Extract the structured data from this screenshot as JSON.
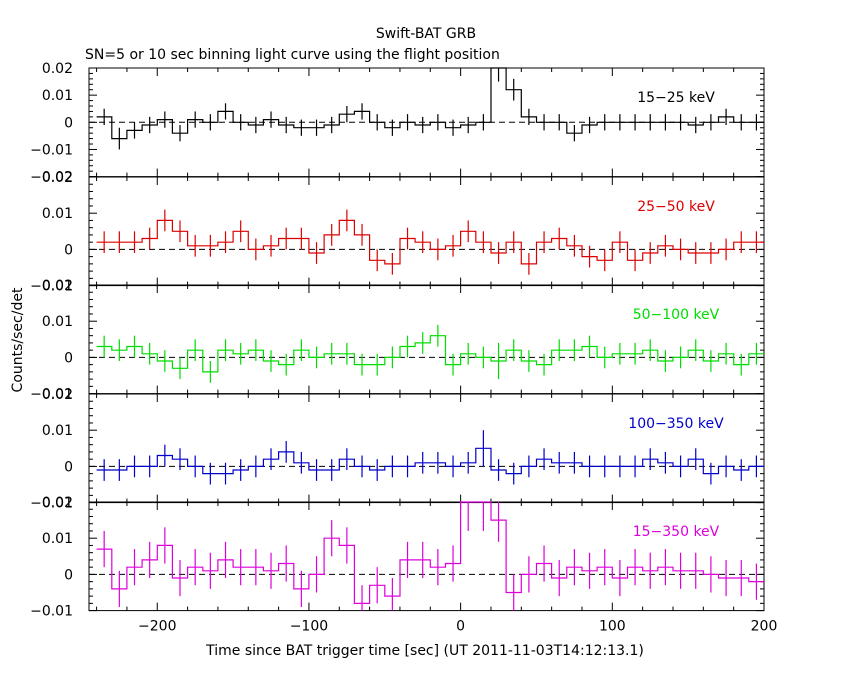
{
  "title": "Swift-BAT GRB",
  "subtitle": "SN=5 or 10 sec binning light curve using the flight position",
  "ylabel": "Counts/sec/det",
  "xlabel": "Time since BAT trigger time [sec] (UT 2011-11-03T14:12:13.1)",
  "colors": {
    "black": "#000000",
    "red": "#dd0000",
    "green": "#00dd00",
    "blue": "#0000cc",
    "magenta": "#dd00dd"
  },
  "chart_data": {
    "type": "line",
    "step": true,
    "xlim": [
      -245,
      200
    ],
    "xticks": [
      -200,
      -100,
      0,
      100,
      200
    ],
    "xtick_labels": [
      "−200",
      "−100",
      "0",
      "100",
      "200"
    ],
    "bin_width": 10,
    "bin_starts": [
      -240,
      -230,
      -220,
      -210,
      -200,
      -190,
      -180,
      -170,
      -160,
      -150,
      -140,
      -130,
      -120,
      -110,
      -100,
      -90,
      -80,
      -70,
      -60,
      -50,
      -40,
      -30,
      -20,
      -10,
      0,
      10,
      20,
      30,
      40,
      50,
      60,
      70,
      80,
      90,
      100,
      110,
      120,
      130,
      140,
      150,
      160,
      170,
      180,
      190
    ],
    "panels": [
      {
        "label": "15−25 keV",
        "color": "#000000",
        "ylim": [
          -0.02,
          0.02
        ],
        "yticks": [
          -0.02,
          -0.01,
          0,
          0.01,
          0.02
        ],
        "ytick_labels": [
          "−0.02",
          "−0.01",
          "0",
          "0.01",
          "0.02"
        ],
        "values": [
          0.002,
          -0.006,
          -0.003,
          -0.001,
          0.001,
          -0.004,
          0.001,
          0.0,
          0.004,
          0.0,
          -0.001,
          0.001,
          -0.001,
          -0.002,
          -0.002,
          -0.001,
          0.003,
          0.004,
          0.0,
          -0.002,
          0.0,
          -0.001,
          0.0,
          -0.002,
          -0.001,
          0.0,
          0.02,
          0.012,
          0.002,
          0.0,
          0.0,
          -0.004,
          -0.001,
          0.0,
          0.0,
          0.0,
          0.0,
          0.0,
          0.0,
          -0.001,
          0.0,
          0.002,
          0.0,
          0.0
        ],
        "errors": [
          0.003,
          0.004,
          0.003,
          0.003,
          0.003,
          0.003,
          0.003,
          0.003,
          0.003,
          0.003,
          0.003,
          0.003,
          0.003,
          0.003,
          0.003,
          0.003,
          0.003,
          0.003,
          0.003,
          0.003,
          0.003,
          0.003,
          0.003,
          0.003,
          0.003,
          0.003,
          0.005,
          0.004,
          0.003,
          0.003,
          0.003,
          0.003,
          0.003,
          0.003,
          0.003,
          0.003,
          0.003,
          0.003,
          0.003,
          0.003,
          0.003,
          0.003,
          0.003,
          0.003
        ]
      },
      {
        "label": "25−50 keV",
        "color": "#dd0000",
        "ylim": [
          -0.01,
          0.02
        ],
        "yticks": [
          -0.01,
          0,
          0.01,
          0.02
        ],
        "ytick_labels": [
          "−0.01",
          "0",
          "0.01",
          "0.02"
        ],
        "values": [
          0.002,
          0.002,
          0.002,
          0.003,
          0.008,
          0.005,
          0.001,
          0.001,
          0.002,
          0.005,
          0.0,
          0.001,
          0.003,
          0.003,
          -0.001,
          0.004,
          0.008,
          0.004,
          -0.003,
          -0.004,
          0.003,
          0.002,
          0.0,
          0.001,
          0.005,
          0.002,
          -0.001,
          0.002,
          -0.004,
          0.002,
          0.003,
          0.001,
          -0.002,
          -0.003,
          0.002,
          -0.003,
          -0.001,
          0.001,
          0.0,
          -0.001,
          -0.001,
          0.0,
          0.002,
          0.002
        ],
        "errors": [
          0.003,
          0.003,
          0.003,
          0.003,
          0.003,
          0.003,
          0.003,
          0.003,
          0.003,
          0.003,
          0.003,
          0.003,
          0.003,
          0.003,
          0.003,
          0.003,
          0.003,
          0.003,
          0.003,
          0.003,
          0.003,
          0.003,
          0.003,
          0.003,
          0.003,
          0.003,
          0.003,
          0.003,
          0.003,
          0.003,
          0.003,
          0.003,
          0.003,
          0.003,
          0.003,
          0.003,
          0.003,
          0.003,
          0.003,
          0.003,
          0.003,
          0.003,
          0.003,
          0.003
        ]
      },
      {
        "label": "50−100 keV",
        "color": "#00dd00",
        "ylim": [
          -0.01,
          0.02
        ],
        "yticks": [
          -0.01,
          0,
          0.01,
          0.02
        ],
        "ytick_labels": [
          "−0.01",
          "0",
          "0.01",
          "0.02"
        ],
        "values": [
          0.003,
          0.002,
          0.003,
          0.001,
          -0.001,
          -0.003,
          0.002,
          -0.004,
          0.002,
          0.001,
          0.002,
          -0.001,
          -0.002,
          0.002,
          0.0,
          0.001,
          0.001,
          -0.002,
          -0.002,
          0.0,
          0.003,
          0.004,
          0.006,
          -0.002,
          0.001,
          0.0,
          -0.001,
          0.002,
          -0.001,
          -0.002,
          0.002,
          0.002,
          0.003,
          0.0,
          0.001,
          0.001,
          0.002,
          -0.001,
          0.0,
          0.002,
          -0.001,
          0.001,
          -0.002,
          0.001
        ],
        "errors": [
          0.003,
          0.003,
          0.003,
          0.003,
          0.003,
          0.003,
          0.003,
          0.003,
          0.003,
          0.003,
          0.003,
          0.003,
          0.003,
          0.003,
          0.003,
          0.003,
          0.003,
          0.003,
          0.003,
          0.003,
          0.003,
          0.003,
          0.003,
          0.003,
          0.003,
          0.003,
          0.005,
          0.003,
          0.003,
          0.003,
          0.003,
          0.003,
          0.003,
          0.003,
          0.003,
          0.003,
          0.003,
          0.003,
          0.003,
          0.003,
          0.003,
          0.003,
          0.003,
          0.003
        ]
      },
      {
        "label": "100−350 keV",
        "color": "#0000cc",
        "ylim": [
          -0.01,
          0.02
        ],
        "yticks": [
          -0.01,
          0,
          0.01,
          0.02
        ],
        "ytick_labels": [
          "−0.01",
          "0",
          "0.01",
          "0.02"
        ],
        "values": [
          -0.001,
          -0.001,
          0.0,
          0.0,
          0.003,
          0.002,
          0.0,
          -0.002,
          -0.002,
          -0.001,
          0.0,
          0.002,
          0.004,
          0.001,
          -0.001,
          -0.001,
          0.002,
          0.0,
          -0.001,
          0.0,
          0.0,
          0.001,
          0.001,
          0.0,
          0.001,
          0.005,
          -0.001,
          -0.002,
          0.0,
          0.002,
          0.001,
          0.001,
          0.0,
          0.0,
          0.0,
          0.0,
          0.002,
          0.001,
          0.0,
          0.002,
          -0.002,
          0.0,
          -0.001,
          0.0
        ],
        "errors": [
          0.003,
          0.003,
          0.003,
          0.003,
          0.003,
          0.003,
          0.003,
          0.003,
          0.003,
          0.003,
          0.003,
          0.003,
          0.003,
          0.003,
          0.003,
          0.003,
          0.003,
          0.003,
          0.003,
          0.003,
          0.003,
          0.003,
          0.003,
          0.003,
          0.003,
          0.005,
          0.003,
          0.003,
          0.003,
          0.003,
          0.003,
          0.003,
          0.003,
          0.003,
          0.003,
          0.003,
          0.003,
          0.003,
          0.003,
          0.003,
          0.003,
          0.003,
          0.003,
          0.003
        ]
      },
      {
        "label": "15−350 keV",
        "color": "#dd00dd",
        "ylim": [
          -0.01,
          0.02
        ],
        "yticks": [
          -0.01,
          0,
          0.01,
          0.02
        ],
        "ytick_labels": [
          "−0.01",
          "0",
          "0.01",
          "0.02"
        ],
        "values": [
          0.007,
          -0.004,
          0.002,
          0.004,
          0.008,
          -0.001,
          0.002,
          0.001,
          0.004,
          0.002,
          0.002,
          0.001,
          0.003,
          -0.004,
          0.0,
          0.01,
          0.008,
          -0.008,
          -0.003,
          -0.006,
          0.004,
          0.004,
          0.002,
          0.003,
          0.02,
          0.02,
          0.015,
          -0.005,
          0.0,
          0.003,
          -0.001,
          0.002,
          0.001,
          0.002,
          -0.001,
          0.002,
          0.001,
          0.002,
          0.001,
          0.001,
          0.0,
          -0.001,
          -0.001,
          -0.002
        ],
        "errors": [
          0.005,
          0.005,
          0.005,
          0.005,
          0.005,
          0.005,
          0.005,
          0.005,
          0.005,
          0.005,
          0.005,
          0.005,
          0.005,
          0.005,
          0.005,
          0.005,
          0.005,
          0.005,
          0.005,
          0.005,
          0.005,
          0.005,
          0.005,
          0.005,
          0.008,
          0.008,
          0.006,
          0.005,
          0.005,
          0.005,
          0.005,
          0.005,
          0.005,
          0.005,
          0.005,
          0.005,
          0.005,
          0.005,
          0.005,
          0.005,
          0.005,
          0.005,
          0.005,
          0.005
        ]
      }
    ]
  }
}
